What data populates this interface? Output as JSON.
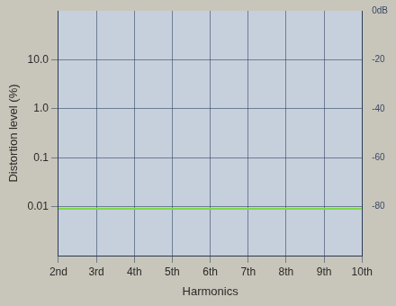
{
  "chart_data": {
    "type": "line",
    "x_label": "Harmonics",
    "y_label": "Distortion level (%)",
    "categories": [
      "2nd",
      "3rd",
      "4th",
      "5th",
      "6th",
      "7th",
      "8th",
      "9th",
      "10th"
    ],
    "values": [
      0.009,
      0.009,
      0.009,
      0.009,
      0.009,
      0.009,
      0.009,
      0.009,
      0.009
    ],
    "color": "#7fd84a",
    "log": "y",
    "ylim": [
      0.001,
      100
    ],
    "yticks": [
      0.01,
      0.1,
      {
        "value": 1,
        "label": "1.0"
      },
      {
        "value": 10,
        "label": "10.0"
      }
    ],
    "y2lim": [
      -100,
      0
    ],
    "y2ticks": [
      {
        "value": 0,
        "label": "0dB"
      },
      -20,
      -40,
      -60,
      -80
    ],
    "grid": true
  }
}
